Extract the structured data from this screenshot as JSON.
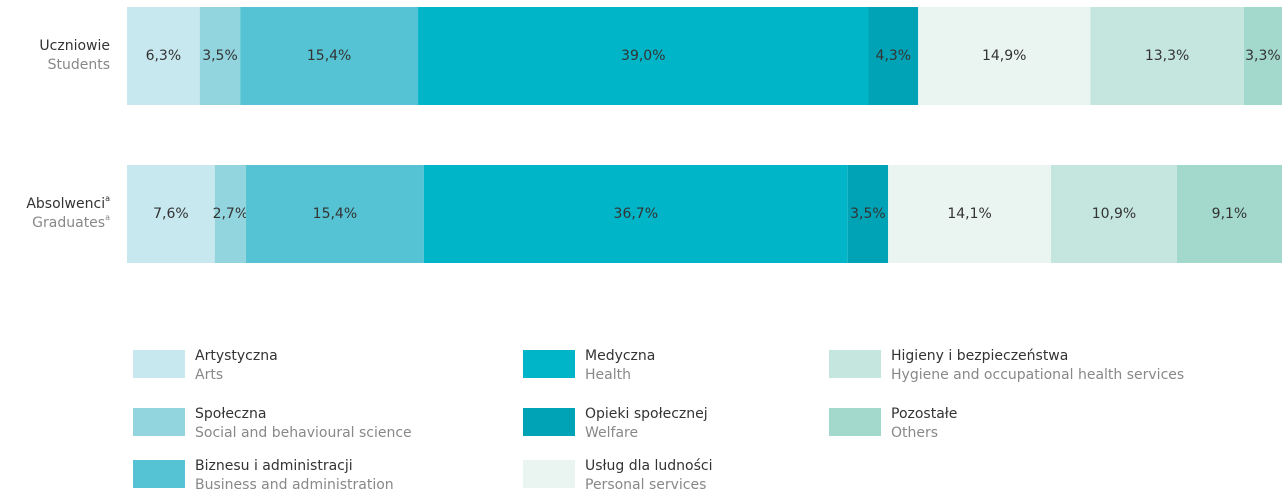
{
  "chart_data": {
    "type": "stacked_bar_horizontal",
    "categories": [
      "Uczniowie",
      "Absolwenci"
    ],
    "categories_en": [
      "Students",
      "Graduates"
    ],
    "category_marks": [
      null,
      "a"
    ],
    "xlim": [
      0,
      100
    ],
    "series": [
      {
        "name": "Artystyczna",
        "name_en": "Arts",
        "color": "#c8e8ef",
        "values": [
          6.3,
          7.6
        ],
        "value_labels": [
          "6,3%",
          "7,6%"
        ]
      },
      {
        "name": "Społeczna",
        "name_en": "Social and behavioural science",
        "color": "#93d5de",
        "values": [
          3.5,
          2.7
        ],
        "value_labels": [
          "3,5%",
          "2,7%"
        ]
      },
      {
        "name": "Biznesu i administracji",
        "name_en": "Business and administration",
        "color": "#55c3d3",
        "values": [
          15.4,
          15.4
        ],
        "value_labels": [
          "15,4%",
          "15,4%"
        ]
      },
      {
        "name": "Medyczna",
        "name_en": "Health",
        "color": "#00b5c8",
        "values": [
          39.0,
          36.7
        ],
        "value_labels": [
          "39,0%",
          "36,7%"
        ]
      },
      {
        "name": "Opieki społecznej",
        "name_en": "Welfare",
        "color": "#00a3b6",
        "values": [
          4.3,
          3.5
        ],
        "value_labels": [
          "4,3%",
          "3,5%"
        ]
      },
      {
        "name": "Usług dla ludności",
        "name_en": "Personal services",
        "color": "#eaf5f2",
        "values": [
          14.9,
          14.1
        ],
        "value_labels": [
          "14,9%",
          "14,1%"
        ]
      },
      {
        "name": "Higieny i bezpieczeństwa",
        "name_en": "Hygiene and occupational health services",
        "color": "#c5e6de",
        "values": [
          13.3,
          10.9
        ],
        "value_labels": [
          "13,3%",
          "10,9%"
        ]
      },
      {
        "name": "Pozostałe",
        "name_en": "Others",
        "color": "#a3d9cc",
        "values": [
          3.3,
          9.1
        ],
        "value_labels": [
          "3,3%",
          "9,1%"
        ]
      }
    ]
  }
}
